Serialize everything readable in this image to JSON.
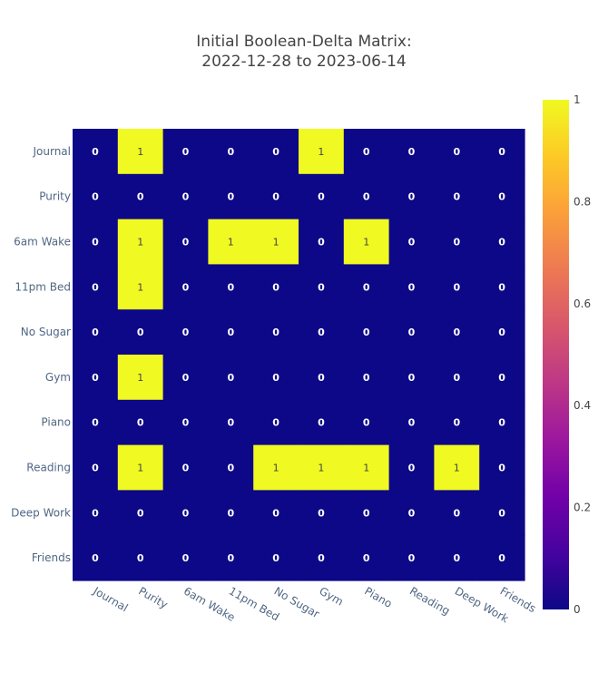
{
  "chart_data": {
    "type": "heatmap",
    "title": [
      "Initial Boolean-Delta Matrix:",
      "2022-12-28 to 2023-06-14"
    ],
    "x": [
      "Journal",
      "Purity",
      "6am Wake",
      "11pm Bed",
      "No Sugar",
      "Gym",
      "Piano",
      "Reading",
      "Deep Work",
      "Friends"
    ],
    "y": [
      "Journal",
      "Purity",
      "6am Wake",
      "11pm Bed",
      "No Sugar",
      "Gym",
      "Piano",
      "Reading",
      "Deep Work",
      "Friends"
    ],
    "z": [
      [
        0,
        1,
        0,
        0,
        0,
        1,
        0,
        0,
        0,
        0
      ],
      [
        0,
        0,
        0,
        0,
        0,
        0,
        0,
        0,
        0,
        0
      ],
      [
        0,
        1,
        0,
        1,
        1,
        0,
        1,
        0,
        0,
        0
      ],
      [
        0,
        1,
        0,
        0,
        0,
        0,
        0,
        0,
        0,
        0
      ],
      [
        0,
        0,
        0,
        0,
        0,
        0,
        0,
        0,
        0,
        0
      ],
      [
        0,
        1,
        0,
        0,
        0,
        0,
        0,
        0,
        0,
        0
      ],
      [
        0,
        0,
        0,
        0,
        0,
        0,
        0,
        0,
        0,
        0
      ],
      [
        0,
        1,
        0,
        0,
        1,
        1,
        1,
        0,
        1,
        0
      ],
      [
        0,
        0,
        0,
        0,
        0,
        0,
        0,
        0,
        0,
        0
      ],
      [
        0,
        0,
        0,
        0,
        0,
        0,
        0,
        0,
        0,
        0
      ]
    ],
    "colorscale": "plasma",
    "zrange": [
      0,
      1
    ],
    "colorbar_ticks": [
      "0",
      "0.2",
      "0.4",
      "0.6",
      "0.8",
      "1"
    ],
    "colorbar_tick_values": [
      0,
      0.2,
      0.4,
      0.6,
      0.8,
      1
    ],
    "colorbar_placement": "right",
    "grid": false,
    "x_tick_angle": 30
  },
  "colors": {
    "zero": "#0d0887",
    "one": "#f0f921",
    "label_on_zero": "#ffffff",
    "label_on_one": "#444444"
  }
}
